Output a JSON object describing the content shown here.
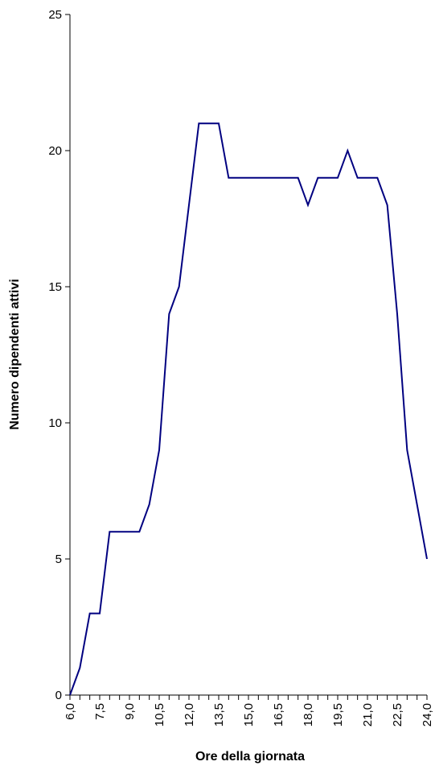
{
  "chart_data": {
    "type": "line",
    "title": "",
    "xlabel": "Ore della giornata",
    "ylabel": "Numero dipendenti attivi",
    "x": [
      6.0,
      6.5,
      7.0,
      7.5,
      8.0,
      8.5,
      9.0,
      9.5,
      10.0,
      10.5,
      11.0,
      11.5,
      12.0,
      12.5,
      13.0,
      13.5,
      14.0,
      14.5,
      15.0,
      15.5,
      16.0,
      16.5,
      17.0,
      17.5,
      18.0,
      18.5,
      19.0,
      19.5,
      20.0,
      20.5,
      21.0,
      21.5,
      22.0,
      22.5,
      23.0,
      23.5,
      24.0
    ],
    "series": [
      {
        "values": [
          0,
          1,
          3,
          3,
          6,
          6,
          6,
          6,
          7,
          9,
          14,
          15,
          18,
          21,
          21,
          21,
          19,
          19,
          19,
          19,
          19,
          19,
          19,
          19,
          18,
          19,
          19,
          19,
          20,
          19,
          19,
          19,
          18,
          14,
          9,
          7,
          5
        ],
        "color": "#000080"
      }
    ],
    "x_tick_labels": [
      "6,0",
      "7,5",
      "9,0",
      "10,5",
      "12,0",
      "13,5",
      "15,0",
      "16,5",
      "18,0",
      "19,5",
      "21,0",
      "22,5",
      "24,0"
    ],
    "x_tick_values": [
      6.0,
      7.5,
      9.0,
      10.5,
      12.0,
      13.5,
      15.0,
      16.5,
      18.0,
      19.5,
      21.0,
      22.5,
      24.0
    ],
    "y_tick_labels": [
      "0",
      "5",
      "10",
      "15",
      "20",
      "25"
    ],
    "y_tick_values": [
      0,
      5,
      10,
      15,
      20,
      25
    ],
    "ylim": [
      0,
      25
    ],
    "xlim": [
      6.0,
      24.0
    ],
    "grid": false,
    "legend": "none"
  }
}
